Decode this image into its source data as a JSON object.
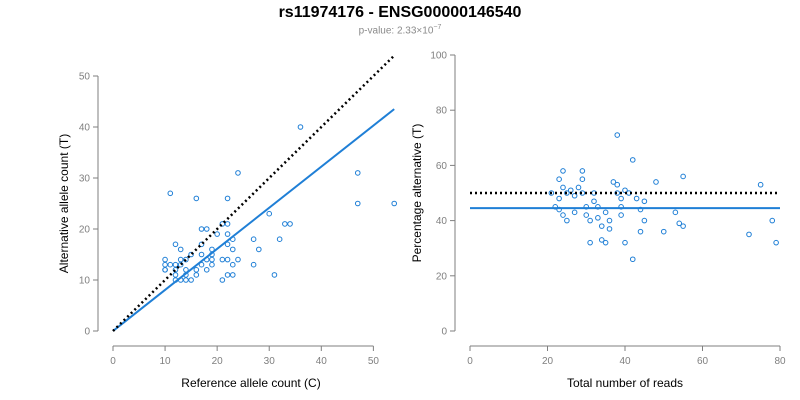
{
  "title": "rs11974176 - ENSG00000146540",
  "subtitle": {
    "prefix": "p-value: 2.33×10",
    "exponent": "−7"
  },
  "chart_data": [
    {
      "type": "scatter",
      "xlabel": "Reference allele count (C)",
      "ylabel": "Alternative allele count (T)",
      "xlim": [
        0,
        53
      ],
      "ylim": [
        0,
        50
      ],
      "xticks": [
        0,
        10,
        20,
        30,
        40,
        50
      ],
      "yticks": [
        0,
        10,
        20,
        30,
        40,
        50
      ],
      "points": [
        [
          10,
          14
        ],
        [
          10,
          13
        ],
        [
          10,
          12
        ],
        [
          10,
          12
        ],
        [
          11,
          13
        ],
        [
          11,
          27
        ],
        [
          12,
          17
        ],
        [
          12,
          13
        ],
        [
          12,
          12
        ],
        [
          12,
          11
        ],
        [
          12,
          10
        ],
        [
          13,
          16
        ],
        [
          13,
          13
        ],
        [
          13,
          14
        ],
        [
          13,
          10
        ],
        [
          14,
          14
        ],
        [
          14,
          12
        ],
        [
          14,
          10
        ],
        [
          14,
          11
        ],
        [
          15,
          15
        ],
        [
          15,
          10
        ],
        [
          16,
          12
        ],
        [
          16,
          11
        ],
        [
          16,
          26
        ],
        [
          17,
          15
        ],
        [
          17,
          13
        ],
        [
          17,
          17
        ],
        [
          17,
          20
        ],
        [
          18,
          20
        ],
        [
          18,
          12
        ],
        [
          18,
          14
        ],
        [
          19,
          13
        ],
        [
          19,
          15
        ],
        [
          19,
          16
        ],
        [
          19,
          14
        ],
        [
          20,
          19
        ],
        [
          21,
          21
        ],
        [
          21,
          14
        ],
        [
          21,
          10
        ],
        [
          22,
          21
        ],
        [
          22,
          26
        ],
        [
          22,
          14
        ],
        [
          22,
          11
        ],
        [
          22,
          19
        ],
        [
          22,
          17
        ],
        [
          23,
          11
        ],
        [
          23,
          16
        ],
        [
          23,
          13
        ],
        [
          23,
          18
        ],
        [
          24,
          31
        ],
        [
          24,
          14
        ],
        [
          27,
          18
        ],
        [
          27,
          13
        ],
        [
          28,
          16
        ],
        [
          30,
          23
        ],
        [
          31,
          11
        ],
        [
          32,
          18
        ],
        [
          33,
          21
        ],
        [
          34,
          21
        ],
        [
          36,
          40
        ],
        [
          47,
          31
        ],
        [
          47,
          25
        ],
        [
          54,
          25
        ]
      ],
      "fit_line": [
        [
          0,
          0
        ],
        [
          54,
          43.5
        ]
      ],
      "reference_line": [
        [
          0,
          0
        ],
        [
          54,
          54
        ]
      ]
    },
    {
      "type": "scatter",
      "xlabel": "Total number of reads",
      "ylabel": "Percentage alternative (T)",
      "xlim": [
        0,
        80
      ],
      "ylim": [
        0,
        100
      ],
      "xticks": [
        0,
        20,
        40,
        60,
        80
      ],
      "yticks": [
        0,
        20,
        40,
        60,
        80,
        100
      ],
      "points": [
        [
          21,
          50
        ],
        [
          22,
          45
        ],
        [
          23,
          55
        ],
        [
          23,
          48
        ],
        [
          23,
          44
        ],
        [
          24,
          58
        ],
        [
          24,
          42
        ],
        [
          24,
          52
        ],
        [
          25,
          50
        ],
        [
          25,
          40
        ],
        [
          26,
          51
        ],
        [
          27,
          49
        ],
        [
          27,
          43
        ],
        [
          28,
          52
        ],
        [
          29,
          58
        ],
        [
          29,
          55
        ],
        [
          29,
          50
        ],
        [
          30,
          45
        ],
        [
          30,
          42
        ],
        [
          31,
          32
        ],
        [
          31,
          40
        ],
        [
          32,
          50
        ],
        [
          32,
          47
        ],
        [
          33,
          45
        ],
        [
          33,
          41
        ],
        [
          34,
          33
        ],
        [
          34,
          38
        ],
        [
          35,
          32
        ],
        [
          35,
          43
        ],
        [
          36,
          37
        ],
        [
          36,
          40
        ],
        [
          37,
          54
        ],
        [
          38,
          53
        ],
        [
          38,
          71
        ],
        [
          38,
          50
        ],
        [
          39,
          48
        ],
        [
          39,
          45
        ],
        [
          39,
          42
        ],
        [
          40,
          51
        ],
        [
          40,
          32
        ],
        [
          41,
          50
        ],
        [
          42,
          26
        ],
        [
          42,
          62
        ],
        [
          43,
          48
        ],
        [
          44,
          44
        ],
        [
          44,
          36
        ],
        [
          45,
          47
        ],
        [
          45,
          40
        ],
        [
          48,
          54
        ],
        [
          50,
          36
        ],
        [
          53,
          43
        ],
        [
          54,
          39
        ],
        [
          55,
          56
        ],
        [
          55,
          38
        ],
        [
          72,
          35
        ],
        [
          75,
          53
        ],
        [
          78,
          40
        ],
        [
          79,
          32
        ]
      ],
      "fit_line": [
        [
          0,
          44.5
        ],
        [
          80,
          44.5
        ]
      ],
      "reference_line": [
        [
          0,
          50
        ],
        [
          80,
          50
        ]
      ]
    }
  ]
}
